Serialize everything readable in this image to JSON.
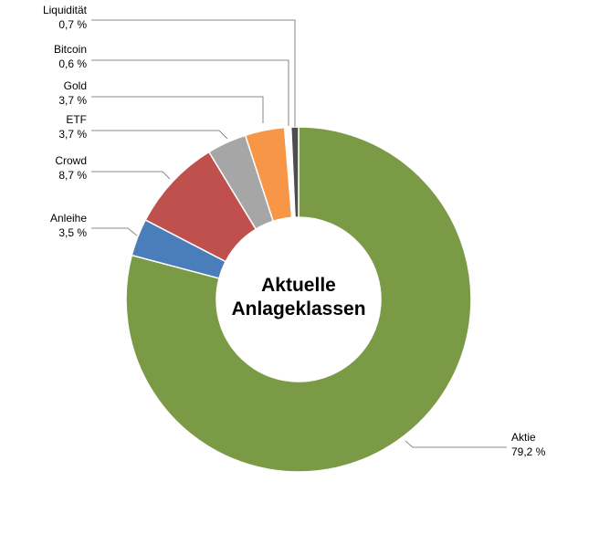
{
  "chart_data": {
    "type": "donut",
    "title": "Aktuelle Anlageklassen",
    "categories": [
      "Aktie",
      "Anleihe",
      "Crowd",
      "ETF",
      "Gold",
      "Bitcoin",
      "Liquidität"
    ],
    "values": [
      79.2,
      3.5,
      8.7,
      3.7,
      3.7,
      0.6,
      0.7
    ],
    "value_labels": [
      "79,2 %",
      "3,5 %",
      "8,7 %",
      "3,7 %",
      "3,7 %",
      "0,6 %",
      "0,7 %"
    ],
    "colors": [
      "#7b9a46",
      "#4a7ebb",
      "#c0504d",
      "#a6a6a6",
      "#f79646",
      "#ffffff",
      "#4d4d4d"
    ]
  }
}
